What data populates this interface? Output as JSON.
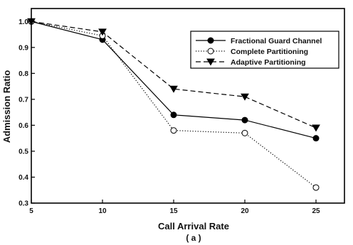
{
  "chart_data": {
    "type": "line",
    "title": "",
    "xlabel": "Call Arrival Rate",
    "subtitle": "( a )",
    "ylabel": "Admission Ratio",
    "x": [
      5,
      10,
      15,
      20,
      25
    ],
    "x_ticks": [
      "5",
      "10",
      "15",
      "20",
      "25"
    ],
    "y_ticks": [
      "0.3",
      "0.4",
      "0.5",
      "0.6",
      "0.7",
      "0.8",
      "0.9",
      "1.0"
    ],
    "xlim": [
      5,
      27
    ],
    "ylim": [
      0.3,
      1.05
    ],
    "grid": false,
    "legend_position": "top-right",
    "series": [
      {
        "name": "Fractional Guard Channel",
        "values": [
          1.0,
          0.93,
          0.64,
          0.62,
          0.55
        ],
        "marker": "filled-circle",
        "line": "solid",
        "color": "#000000"
      },
      {
        "name": "Complete Partitioning",
        "values": [
          1.0,
          0.945,
          0.58,
          0.57,
          0.36
        ],
        "marker": "open-circle",
        "line": "dotted",
        "color": "#000000"
      },
      {
        "name": "Adaptive Partitioning",
        "values": [
          1.0,
          0.96,
          0.74,
          0.71,
          0.59
        ],
        "marker": "filled-triangle-down",
        "line": "dashed",
        "color": "#000000"
      }
    ]
  }
}
